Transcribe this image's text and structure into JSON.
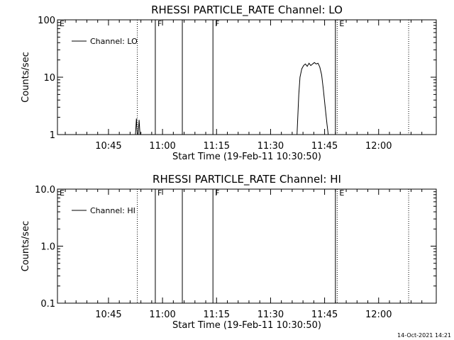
{
  "chart_data": [
    {
      "type": "line",
      "title": "RHESSI PARTICLE_RATE Channel: LO",
      "xlabel": "Start Time (19-Feb-11 10:30:50)",
      "ylabel": "Counts/sec",
      "y_scale": "log",
      "ylim": [
        1,
        100
      ],
      "y_ticks": [
        {
          "v": 1,
          "label": "1"
        },
        {
          "v": 10,
          "label": "10"
        },
        {
          "v": 100,
          "label": "100"
        }
      ],
      "xlim": [
        "10:30:50",
        "12:16:00"
      ],
      "x_ticks": [
        "10:45",
        "11:00",
        "11:15",
        "11:30",
        "11:45",
        "12:00"
      ],
      "legend": {
        "placement": "top-left",
        "label": "Channel: LO"
      },
      "markers": [
        {
          "label": "E",
          "time": "10:30:50",
          "style": "none"
        },
        {
          "label": "",
          "time": "10:53:00",
          "style": "dotted"
        },
        {
          "label": "F",
          "time": "10:58:00",
          "style": "solid"
        },
        {
          "label": "",
          "time": "11:05:30",
          "style": "solid"
        },
        {
          "label": "F",
          "time": "11:14:00",
          "style": "solid"
        },
        {
          "label": "",
          "time": "11:48:00",
          "style": "solid"
        },
        {
          "label": "E",
          "time": "11:48:30",
          "style": "dotted"
        },
        {
          "label": "",
          "time": "12:08:20",
          "style": "dotted"
        }
      ],
      "series": [
        {
          "name": "Channel: LO",
          "segments": [
            [
              [
                "10:52:30",
                1.0
              ],
              [
                "10:52:45",
                1.9
              ],
              [
                "10:53:00",
                1.0
              ],
              [
                "10:53:15",
                1.0
              ],
              [
                "10:53:30",
                1.8
              ],
              [
                "10:53:45",
                1.0
              ]
            ],
            [
              [
                "11:37:20",
                1.0
              ],
              [
                "11:37:50",
                5.0
              ],
              [
                "11:38:10",
                10.0
              ],
              [
                "11:38:40",
                14.0
              ],
              [
                "11:39:10",
                16.0
              ],
              [
                "11:39:40",
                17.0
              ],
              [
                "11:40:10",
                15.5
              ],
              [
                "11:40:40",
                17.5
              ],
              [
                "11:41:10",
                16.0
              ],
              [
                "11:41:40",
                17.0
              ],
              [
                "11:42:10",
                18.0
              ],
              [
                "11:42:40",
                17.0
              ],
              [
                "11:43:10",
                17.5
              ],
              [
                "11:43:40",
                15.0
              ],
              [
                "11:44:10",
                11.0
              ],
              [
                "11:44:40",
                6.0
              ],
              [
                "11:45:10",
                3.0
              ],
              [
                "11:45:40",
                1.5
              ],
              [
                "11:46:00",
                1.0
              ]
            ]
          ]
        }
      ]
    },
    {
      "type": "line",
      "title": "RHESSI PARTICLE_RATE Channel: HI",
      "xlabel": "Start Time (19-Feb-11 10:30:50)",
      "ylabel": "Counts/sec",
      "y_scale": "log",
      "ylim": [
        0.1,
        10
      ],
      "y_ticks": [
        {
          "v": 0.1,
          "label": "0.1"
        },
        {
          "v": 1,
          "label": "1.0"
        },
        {
          "v": 10,
          "label": "10.0"
        }
      ],
      "xlim": [
        "10:30:50",
        "12:16:00"
      ],
      "x_ticks": [
        "10:45",
        "11:00",
        "11:15",
        "11:30",
        "11:45",
        "12:00"
      ],
      "legend": {
        "placement": "top-left",
        "label": "Channel: HI"
      },
      "markers": [
        {
          "label": "E",
          "time": "10:30:50",
          "style": "none"
        },
        {
          "label": "",
          "time": "10:53:00",
          "style": "dotted"
        },
        {
          "label": "F",
          "time": "10:58:00",
          "style": "solid"
        },
        {
          "label": "",
          "time": "11:05:30",
          "style": "solid"
        },
        {
          "label": "F",
          "time": "11:14:00",
          "style": "solid"
        },
        {
          "label": "",
          "time": "11:48:00",
          "style": "solid"
        },
        {
          "label": "E",
          "time": "11:48:30",
          "style": "dotted"
        },
        {
          "label": "",
          "time": "12:08:20",
          "style": "dotted"
        }
      ],
      "series": [
        {
          "name": "Channel: HI",
          "segments": []
        }
      ]
    }
  ],
  "footer": {
    "timestamp": "14-Oct-2021 14:21"
  }
}
